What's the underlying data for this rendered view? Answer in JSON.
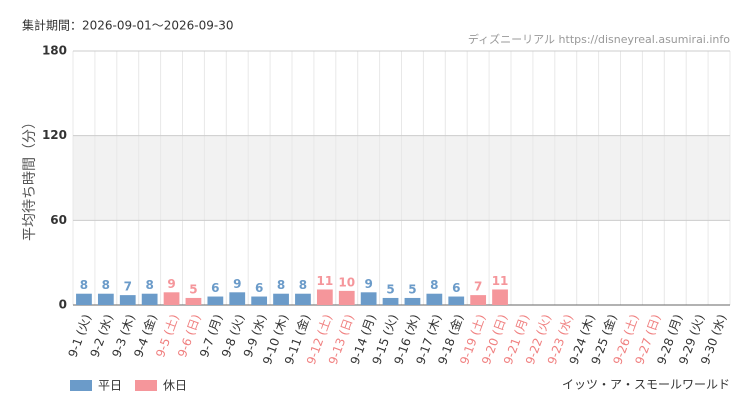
{
  "chart_data": {
    "type": "bar",
    "period": "集計期間：2026-09-01～2026-09-30",
    "source": "ディズニーリアル https://disneyreal.asumirai.info",
    "attraction": "イッツ・ア・スモールワールド",
    "y_label": "平均待ち時間（分）",
    "categories": [
      "9-1 (火)",
      "9-2 (水)",
      "9-3 (木)",
      "9-4 (金)",
      "9-5 (土)",
      "9-6 (日)",
      "9-7 (月)",
      "9-8 (火)",
      "9-9 (水)",
      "9-10 (木)",
      "9-11 (金)",
      "9-12 (土)",
      "9-13 (日)",
      "9-14 (月)",
      "9-15 (火)",
      "9-16 (水)",
      "9-17 (木)",
      "9-18 (金)",
      "9-19 (土)",
      "9-20 (日)",
      "9-21 (月)",
      "9-22 (火)",
      "9-23 (水)",
      "9-24 (木)",
      "9-25 (金)",
      "9-26 (土)",
      "9-27 (日)",
      "9-28 (月)",
      "9-29 (火)",
      "9-30 (水)"
    ],
    "category_colors": [
      "#333",
      "#333",
      "#333",
      "#333",
      "#f08080",
      "#f08080",
      "#333",
      "#333",
      "#333",
      "#333",
      "#333",
      "#f08080",
      "#f08080",
      "#333",
      "#333",
      "#333",
      "#333",
      "#333",
      "#f08080",
      "#f08080",
      "#f08080",
      "#f08080",
      "#f08080",
      "#333",
      "#333",
      "#f08080",
      "#f08080",
      "#333",
      "#333",
      "#333"
    ],
    "series": [
      {
        "name": "平日",
        "color": "#6b9bc9",
        "values": [
          8,
          8,
          7,
          8,
          null,
          null,
          6,
          9,
          6,
          8,
          8,
          null,
          null,
          9,
          5,
          5,
          8,
          6,
          null,
          null,
          null,
          null,
          null,
          null,
          null,
          null,
          null,
          null,
          null,
          null
        ]
      },
      {
        "name": "休日",
        "color": "#f5969b",
        "values": [
          null,
          null,
          null,
          null,
          9,
          5,
          null,
          null,
          null,
          null,
          null,
          11,
          10,
          null,
          null,
          null,
          null,
          null,
          7,
          11,
          null,
          null,
          null,
          null,
          null,
          null,
          null,
          null,
          null,
          null
        ]
      }
    ],
    "ylim": [
      0,
      180
    ],
    "yticks": [
      0,
      60,
      120,
      180
    ],
    "grid": true
  }
}
